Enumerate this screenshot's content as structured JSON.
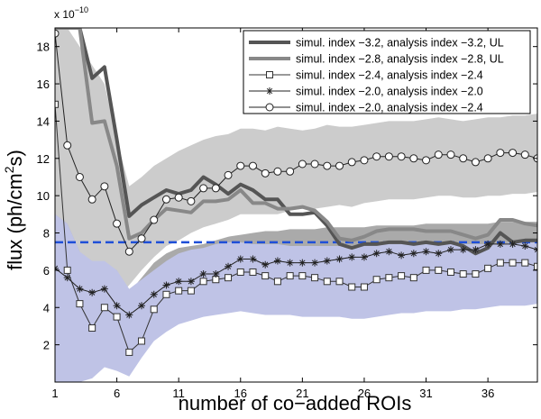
{
  "chart_data": {
    "type": "line",
    "title": "",
    "xlabel": "number of co−added ROIs",
    "ylabel": "flux (ph/cm",
    "ylabel_sup": "2",
    "ylabel_tail": "s)",
    "y_multiplier_base": "x 10",
    "y_multiplier_exp": "−10",
    "xlim": [
      1,
      40
    ],
    "ylim": [
      0,
      19
    ],
    "xticks": [
      1,
      6,
      11,
      16,
      21,
      26,
      31,
      36
    ],
    "xtick_labels": [
      "1",
      "6",
      "11",
      "16",
      "21",
      "26",
      "31",
      "36"
    ],
    "yticks": [
      2,
      4,
      6,
      8,
      10,
      12,
      14,
      16,
      18
    ],
    "ytick_labels": [
      "2",
      "4",
      "6",
      "8",
      "10",
      "12",
      "14",
      "16",
      "18"
    ],
    "grid": false,
    "legend_position": "top-right",
    "reference_line": {
      "y": 7.5,
      "color": "#1f4fd8",
      "style": "dashed"
    },
    "bands": [
      {
        "name": "light gray band",
        "color": "#cccccc",
        "x": [
          1,
          2,
          3,
          4,
          5,
          6,
          7,
          8,
          9,
          10,
          11,
          12,
          13,
          14,
          15,
          16,
          17,
          18,
          19,
          20,
          21,
          22,
          23,
          24,
          25,
          26,
          27,
          28,
          29,
          30,
          31,
          32,
          33,
          34,
          35,
          36,
          37,
          38,
          39,
          40
        ],
        "lower": [
          6.0,
          5.0,
          4.3,
          4.0,
          4.2,
          4.5,
          5.2,
          6.0,
          6.7,
          7.3,
          7.6,
          8.0,
          8.3,
          8.5,
          8.7,
          9.0,
          9.0,
          9.0,
          9.0,
          9.2,
          9.3,
          9.3,
          9.4,
          9.5,
          9.4,
          9.6,
          9.7,
          9.8,
          9.8,
          9.8,
          9.9,
          10.0,
          10.0,
          9.9,
          9.9,
          10.0,
          10.0,
          10.1,
          10.1,
          10.2
        ],
        "upper": [
          19.0,
          19.0,
          18.0,
          17.0,
          16.0,
          13.0,
          10.5,
          11.0,
          11.6,
          12.0,
          12.4,
          12.7,
          13.0,
          13.2,
          13.3,
          13.6,
          13.6,
          13.5,
          13.7,
          13.6,
          13.5,
          13.6,
          13.8,
          13.7,
          13.7,
          13.8,
          13.9,
          14.0,
          14.0,
          14.0,
          14.1,
          14.2,
          14.1,
          14.0,
          14.1,
          14.2,
          14.2,
          14.3,
          14.3,
          14.4
        ]
      },
      {
        "name": "dark gray band",
        "color": "#aaaaaa",
        "x": [
          1,
          2,
          3,
          4,
          5,
          6,
          7,
          8,
          9,
          10,
          11,
          12,
          13,
          14,
          15,
          16,
          17,
          18,
          19,
          20,
          21,
          22,
          23,
          24,
          25,
          26,
          27,
          28,
          29,
          30,
          31,
          32,
          33,
          34,
          35,
          36,
          37,
          38,
          39,
          40
        ],
        "lower": [
          2.5,
          2.3,
          2.5,
          2.4,
          2.6,
          2.2,
          2.0,
          2.6,
          3.1,
          3.5,
          3.9,
          4.1,
          4.3,
          4.6,
          4.9,
          5.2,
          5.4,
          5.5,
          5.6,
          5.6,
          5.7,
          5.8,
          5.9,
          6.0,
          6.0,
          6.0,
          6.1,
          6.2,
          6.2,
          6.3,
          6.4,
          6.4,
          6.4,
          6.4,
          6.5,
          6.5,
          6.6,
          6.6,
          6.6,
          6.6
        ],
        "upper": [
          9.0,
          8.5,
          7.0,
          6.2,
          6.4,
          6.0,
          4.8,
          5.6,
          6.4,
          6.9,
          7.2,
          7.3,
          7.4,
          7.6,
          7.8,
          7.9,
          8.0,
          8.1,
          8.1,
          8.2,
          8.2,
          8.2,
          8.3,
          8.3,
          8.3,
          8.3,
          8.4,
          8.4,
          8.4,
          8.4,
          8.5,
          8.5,
          8.5,
          8.5,
          8.5,
          8.5,
          8.6,
          8.6,
          8.6,
          8.6
        ]
      },
      {
        "name": "blue band",
        "color": "#bfc3e6",
        "x": [
          1,
          2,
          3,
          4,
          5,
          6,
          7,
          8,
          9,
          10,
          11,
          12,
          13,
          14,
          15,
          16,
          17,
          18,
          19,
          20,
          21,
          22,
          23,
          24,
          25,
          26,
          27,
          28,
          29,
          30,
          31,
          32,
          33,
          34,
          35,
          36,
          37,
          38,
          39,
          40
        ],
        "lower": [
          0.0,
          0.0,
          0.0,
          0.2,
          0.8,
          0.6,
          0.3,
          1.3,
          2.2,
          2.7,
          3.1,
          3.3,
          3.5,
          3.6,
          3.7,
          3.8,
          3.7,
          3.6,
          3.6,
          3.6,
          3.5,
          3.5,
          3.5,
          3.5,
          3.4,
          3.4,
          3.5,
          3.6,
          3.7,
          3.7,
          3.8,
          3.8,
          3.8,
          3.9,
          3.9,
          4.0,
          4.1,
          4.1,
          4.1,
          4.2
        ],
        "upper": [
          9.0,
          8.5,
          7.0,
          6.5,
          6.5,
          6.0,
          5.0,
          5.5,
          6.0,
          6.5,
          6.9,
          7.1,
          7.2,
          7.4,
          7.5,
          7.5,
          7.4,
          7.4,
          7.4,
          7.3,
          7.3,
          7.3,
          7.3,
          7.3,
          7.3,
          7.4,
          7.4,
          7.4,
          7.4,
          7.4,
          7.4,
          7.4,
          7.4,
          7.4,
          7.4,
          7.4,
          7.4,
          7.5,
          7.5,
          7.5
        ]
      }
    ],
    "series": [
      {
        "name": "simul. index −3.2, analysis index −3.2, UL",
        "color": "#555555",
        "width": 4,
        "marker": "none",
        "x": [
          1,
          2,
          3,
          4,
          5,
          6,
          7,
          8,
          9,
          10,
          11,
          12,
          13,
          14,
          15,
          16,
          17,
          18,
          19,
          20,
          21,
          22,
          23,
          24,
          25,
          26,
          27,
          28,
          29,
          30,
          31,
          32,
          33,
          34,
          35,
          36,
          37,
          38,
          39,
          40
        ],
        "y": [
          19,
          19,
          19,
          16.3,
          16.9,
          13.0,
          8.9,
          9.5,
          9.9,
          10.3,
          10.1,
          10.3,
          11.0,
          10.6,
          10.1,
          10.6,
          10.3,
          9.8,
          9.8,
          9.0,
          9.0,
          9.1,
          8.4,
          7.4,
          7.2,
          7.4,
          7.4,
          7.5,
          7.5,
          7.4,
          7.5,
          7.4,
          7.5,
          7.3,
          6.9,
          7.2,
          8.0,
          7.5,
          7.6,
          7.6
        ]
      },
      {
        "name": "simul. index −2.8, analysis index −2.8, UL",
        "color": "#888888",
        "width": 4,
        "marker": "none",
        "x": [
          1,
          2,
          3,
          4,
          5,
          6,
          7,
          8,
          9,
          10,
          11,
          12,
          13,
          14,
          15,
          16,
          17,
          18,
          19,
          20,
          21,
          22,
          23,
          24,
          25,
          26,
          27,
          28,
          29,
          30,
          31,
          32,
          33,
          34,
          35,
          36,
          37,
          38,
          39,
          40
        ],
        "y": [
          19,
          19,
          19,
          13.9,
          14.0,
          11.6,
          7.7,
          8.0,
          8.7,
          9.3,
          9.2,
          9.1,
          9.7,
          9.7,
          9.8,
          10.3,
          9.6,
          9.6,
          9.3,
          9.3,
          9.4,
          9.2,
          8.6,
          7.7,
          7.6,
          7.8,
          8.1,
          8.2,
          8.2,
          8.2,
          8.1,
          8.1,
          8.1,
          7.9,
          7.7,
          7.9,
          8.7,
          8.7,
          8.5,
          8.4
        ]
      },
      {
        "name": "simul. index −2.4, analysis index −2.4",
        "color": "#333333",
        "width": 1,
        "marker": "square",
        "x": [
          1,
          2,
          3,
          4,
          5,
          6,
          7,
          8,
          9,
          10,
          11,
          12,
          13,
          14,
          15,
          16,
          17,
          18,
          19,
          20,
          21,
          22,
          23,
          24,
          25,
          26,
          27,
          28,
          29,
          30,
          31,
          32,
          33,
          34,
          35,
          36,
          37,
          38,
          39,
          40
        ],
        "y": [
          14.9,
          6.0,
          4.2,
          2.9,
          4.0,
          3.5,
          1.6,
          2.2,
          3.9,
          4.7,
          4.9,
          4.9,
          5.4,
          5.5,
          5.6,
          5.9,
          5.9,
          5.7,
          5.4,
          5.7,
          5.7,
          5.6,
          5.4,
          5.4,
          5.1,
          5.1,
          5.5,
          5.6,
          5.7,
          5.6,
          6.0,
          6.0,
          5.9,
          5.8,
          5.8,
          6.1,
          6.4,
          6.4,
          6.4,
          6.2
        ]
      },
      {
        "name": "simul. index −2.0, analysis index −2.0",
        "color": "#222222",
        "width": 1,
        "marker": "star",
        "x": [
          1,
          2,
          3,
          4,
          5,
          6,
          7,
          8,
          9,
          10,
          11,
          12,
          13,
          14,
          15,
          16,
          17,
          18,
          19,
          20,
          21,
          22,
          23,
          24,
          25,
          26,
          27,
          28,
          29,
          30,
          31,
          32,
          33,
          34,
          35,
          36,
          37,
          38,
          39,
          40
        ],
        "y": [
          6.1,
          5.6,
          5.0,
          4.8,
          5.0,
          4.1,
          3.6,
          4.1,
          4.7,
          5.2,
          5.4,
          5.4,
          5.8,
          5.8,
          6.2,
          6.6,
          6.6,
          6.3,
          6.5,
          6.4,
          6.4,
          6.4,
          6.5,
          6.6,
          6.7,
          6.7,
          6.9,
          7.0,
          6.8,
          6.9,
          7.0,
          6.9,
          7.1,
          7.1,
          7.1,
          7.4,
          7.4,
          7.4,
          7.3,
          7.1
        ]
      },
      {
        "name": "simul. index −2.0, analysis index −2.4",
        "color": "#222222",
        "width": 1,
        "marker": "circle",
        "x": [
          1,
          2,
          3,
          4,
          5,
          6,
          7,
          8,
          9,
          10,
          11,
          12,
          13,
          14,
          15,
          16,
          17,
          18,
          19,
          20,
          21,
          22,
          23,
          24,
          25,
          26,
          27,
          28,
          29,
          30,
          31,
          32,
          33,
          34,
          35,
          36,
          37,
          38,
          39,
          40
        ],
        "y": [
          18.7,
          12.7,
          11.0,
          9.8,
          10.5,
          8.5,
          7.0,
          7.7,
          8.7,
          9.8,
          9.9,
          9.7,
          10.4,
          10.4,
          11.1,
          11.6,
          11.6,
          11.2,
          11.3,
          11.3,
          11.7,
          11.7,
          11.6,
          11.6,
          11.8,
          11.9,
          12.1,
          12.1,
          12.1,
          12.0,
          11.9,
          12.2,
          12.2,
          12.0,
          11.8,
          12.0,
          12.3,
          12.3,
          12.2,
          12.0
        ]
      }
    ]
  }
}
